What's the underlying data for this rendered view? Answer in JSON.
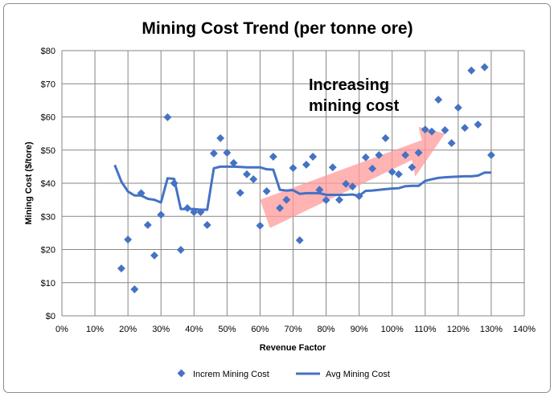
{
  "chart_data": {
    "type": "scatter",
    "title": "Mining Cost Trend (per tonne ore)",
    "xlabel": "Revenue Factor",
    "ylabel": "Mining Cost ($/tore)",
    "xlim": [
      0,
      140
    ],
    "ylim": [
      0,
      80
    ],
    "x_ticks": [
      "0%",
      "10%",
      "20%",
      "30%",
      "40%",
      "50%",
      "60%",
      "70%",
      "80%",
      "90%",
      "100%",
      "110%",
      "120%",
      "130%",
      "140%"
    ],
    "y_ticks": [
      "$0",
      "$10",
      "$20",
      "$30",
      "$40",
      "$50",
      "$60",
      "$70",
      "$80"
    ],
    "grid": true,
    "legend_position": "bottom",
    "annotation": {
      "line1": "Increasing",
      "line2": "mining cost"
    },
    "series": [
      {
        "name": "Increm Mining Cost",
        "type": "scatter",
        "color": "#4472C4",
        "x": [
          18,
          20,
          22,
          24,
          26,
          28,
          30,
          32,
          34,
          36,
          38,
          40,
          42,
          44,
          46,
          48,
          50,
          52,
          54,
          56,
          58,
          60,
          62,
          64,
          66,
          68,
          70,
          72,
          74,
          76,
          78,
          80,
          82,
          84,
          86,
          88,
          90,
          92,
          94,
          96,
          98,
          100,
          102,
          104,
          106,
          108,
          110,
          112,
          114,
          116,
          118,
          120,
          122,
          124,
          126,
          128,
          130
        ],
        "y": [
          14.3,
          23,
          8,
          37,
          27.4,
          18.2,
          30.5,
          59.9,
          40,
          19.9,
          32.5,
          31.3,
          31.3,
          27.4,
          49,
          53.6,
          49.2,
          46.1,
          37.1,
          42.7,
          41.2,
          27.2,
          37.6,
          48,
          32.5,
          35,
          44.6,
          22.8,
          45.6,
          48,
          38,
          34.9,
          44.8,
          35,
          39.8,
          39,
          36.1,
          47.8,
          44.4,
          48.5,
          53.6,
          43.4,
          42.7,
          48.5,
          44.8,
          49.2,
          56.2,
          55.6,
          65.2,
          56,
          52.1,
          62.8,
          56.7,
          74,
          57.7,
          75,
          48.5
        ]
      },
      {
        "name": "Avg Mining Cost",
        "type": "line",
        "color": "#4472C4",
        "x": [
          16,
          18,
          20,
          22,
          24,
          26,
          28,
          30,
          32,
          34,
          36,
          38,
          40,
          42,
          44,
          46,
          48,
          50,
          52,
          54,
          56,
          58,
          60,
          62,
          64,
          66,
          68,
          70,
          72,
          74,
          76,
          78,
          80,
          82,
          84,
          86,
          88,
          90,
          92,
          94,
          96,
          98,
          100,
          102,
          104,
          106,
          108,
          110,
          112,
          114,
          116,
          118,
          120,
          122,
          124,
          126,
          128,
          130
        ],
        "y": [
          45.5,
          40.5,
          37.5,
          36.3,
          36.3,
          35.3,
          35,
          34.2,
          41.5,
          41.3,
          32.2,
          32.2,
          32.2,
          32,
          32,
          44.5,
          45,
          45,
          45,
          44.9,
          44.8,
          44.8,
          44.8,
          44.2,
          44.1,
          38,
          37.8,
          37.9,
          36.8,
          37,
          37,
          37,
          36.5,
          36.5,
          36.5,
          36.5,
          36.6,
          36.2,
          37.7,
          37.8,
          38,
          38.2,
          38.4,
          38.5,
          39.1,
          39.2,
          39.2,
          40.7,
          41.2,
          41.6,
          41.8,
          41.9,
          42,
          42.1,
          42.1,
          42.3,
          43.2,
          43.2
        ]
      }
    ]
  }
}
